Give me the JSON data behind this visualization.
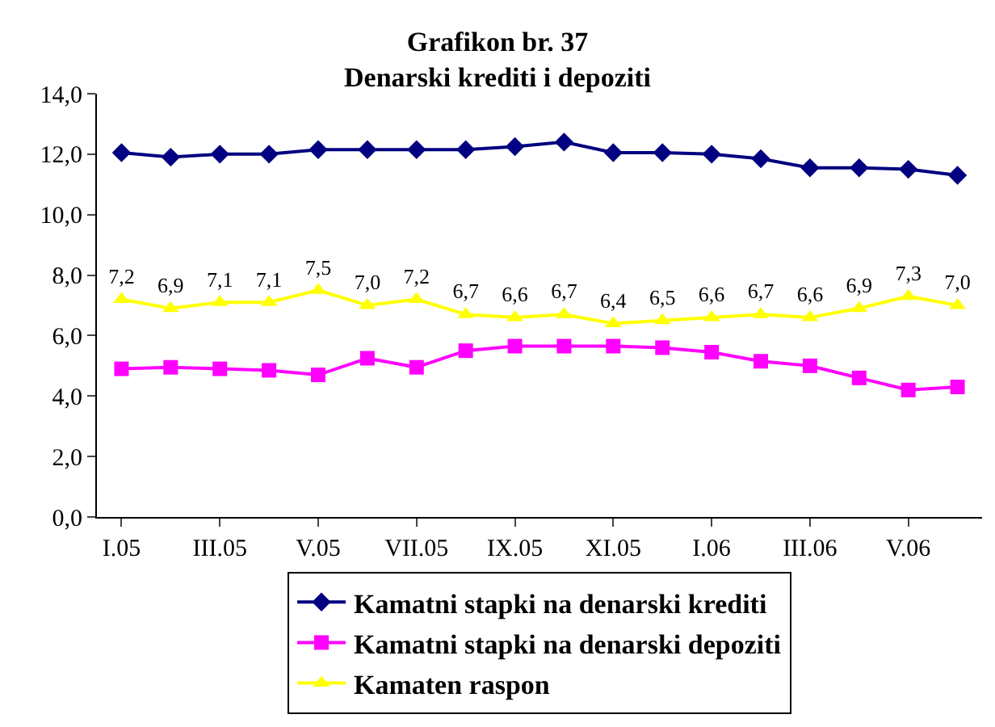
{
  "chart_data": {
    "type": "line",
    "title": "Grafikon br. 37\nDenarski krediti i depoziti",
    "categories": [
      "I.05",
      null,
      "III.05",
      null,
      "V.05",
      null,
      "VII.05",
      null,
      "IX.05",
      null,
      "XI.05",
      null,
      "I.06",
      null,
      "III.06",
      null,
      "V.06",
      null
    ],
    "series": [
      {
        "name": "Kamatni stapki na denarski krediti",
        "color": "#000080",
        "marker": "diamond",
        "values": [
          12.05,
          11.9,
          12.0,
          12.0,
          12.15,
          12.15,
          12.15,
          12.15,
          12.25,
          12.4,
          12.05,
          12.05,
          12.0,
          11.85,
          11.55,
          11.55,
          11.5,
          11.3
        ]
      },
      {
        "name": "Kamatni stapki na denarski depoziti",
        "color": "#ff00ff",
        "marker": "square",
        "values": [
          4.9,
          4.95,
          4.9,
          4.85,
          4.7,
          5.25,
          4.95,
          5.5,
          5.65,
          5.65,
          5.65,
          5.6,
          5.45,
          5.15,
          5.0,
          4.6,
          4.2,
          4.3
        ]
      },
      {
        "name": "Kamaten raspon",
        "color": "#ffff00",
        "marker": "triangle",
        "values": [
          7.2,
          6.9,
          7.1,
          7.1,
          7.5,
          7.0,
          7.2,
          6.7,
          6.6,
          6.7,
          6.4,
          6.5,
          6.6,
          6.7,
          6.6,
          6.9,
          7.3,
          7.0
        ],
        "value_labels": [
          "7,2",
          "6,9",
          "7,1",
          "7,1",
          "7,5",
          "7,0",
          "7,2",
          "6,7",
          "6,6",
          "6,7",
          "6,4",
          "6,5",
          "6,6",
          "6,7",
          "6,6",
          "6,9",
          "7,3",
          "7,0"
        ]
      }
    ],
    "ylim": [
      0,
      14
    ],
    "yticks": [
      {
        "value": 0,
        "label": "0,0"
      },
      {
        "value": 2,
        "label": "2,0"
      },
      {
        "value": 4,
        "label": "4,0"
      },
      {
        "value": 6,
        "label": "6,0"
      },
      {
        "value": 8,
        "label": "8,0"
      },
      {
        "value": 10,
        "label": "10,0"
      },
      {
        "value": 12,
        "label": "12,0"
      },
      {
        "value": 14,
        "label": "14,0"
      }
    ],
    "grid": false,
    "legend": "bottom",
    "line_style": "solid"
  }
}
